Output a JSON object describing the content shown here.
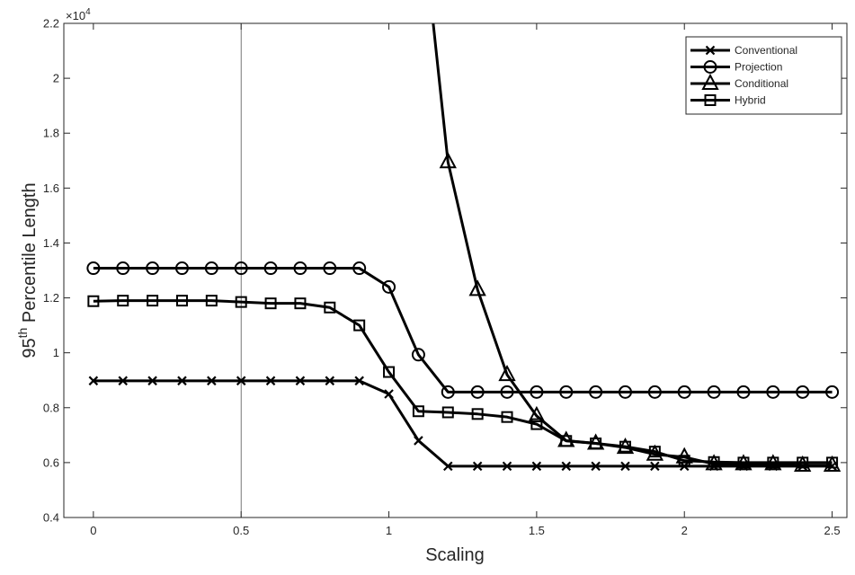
{
  "chart_data": {
    "type": "line",
    "title": "",
    "xlabel": "Scaling",
    "ylabel": "95",
    "ylabel_superscript": "th",
    "ylabel_suffix": " Percentile Length",
    "y_exponent_label": "×10",
    "y_exponent_power": "4",
    "xlim": [
      -0.1,
      2.55
    ],
    "ylim": [
      4000,
      22000
    ],
    "x_ticks": [
      0,
      0.5,
      1,
      1.5,
      2,
      2.5
    ],
    "x_tick_labels": [
      "0",
      "0.5",
      "1",
      "1.5",
      "2",
      "2.5"
    ],
    "y_ticks": [
      4000,
      6000,
      8000,
      10000,
      12000,
      14000,
      16000,
      18000,
      20000,
      22000
    ],
    "y_tick_labels": [
      "0.4",
      "0.6",
      "0.8",
      "1",
      "1.2",
      "1.4",
      "1.6",
      "1.8",
      "2",
      "2.2"
    ],
    "grid": false,
    "reference_vline": 0.5,
    "legend_position": "top-right",
    "x": [
      0,
      0.1,
      0.2,
      0.3,
      0.4,
      0.5,
      0.6,
      0.7,
      0.8,
      0.9,
      1.0,
      1.1,
      1.2,
      1.3,
      1.4,
      1.5,
      1.6,
      1.7,
      1.8,
      1.9,
      2.0,
      2.1,
      2.2,
      2.3,
      2.4,
      2.5
    ],
    "series": [
      {
        "name": "Conventional",
        "marker": "x",
        "values": [
          8980,
          8980,
          8980,
          8980,
          8980,
          8980,
          8980,
          8980,
          8980,
          8980,
          8500,
          6800,
          5870,
          5870,
          5870,
          5870,
          5870,
          5870,
          5870,
          5870,
          5870,
          5870,
          5870,
          5870,
          5870,
          5870
        ]
      },
      {
        "name": "Projection",
        "marker": "circle",
        "values": [
          13080,
          13080,
          13080,
          13080,
          13080,
          13080,
          13080,
          13080,
          13080,
          13080,
          12400,
          9930,
          8570,
          8570,
          8570,
          8570,
          8570,
          8570,
          8570,
          8570,
          8570,
          8570,
          8570,
          8570,
          8570,
          8570
        ]
      },
      {
        "name": "Conditional",
        "marker": "triangle",
        "x": [
          1.15,
          1.2,
          1.3,
          1.4,
          1.5,
          1.6,
          1.7,
          1.8,
          1.9,
          2.0,
          2.1,
          2.2,
          2.3,
          2.4,
          2.5
        ],
        "values": [
          22000,
          16950,
          12300,
          9200,
          7700,
          6800,
          6700,
          6550,
          6300,
          6200,
          5950,
          5950,
          5950,
          5900,
          5900
        ]
      },
      {
        "name": "Hybrid",
        "marker": "square",
        "values": [
          11880,
          11900,
          11900,
          11900,
          11900,
          11850,
          11800,
          11800,
          11650,
          11000,
          9300,
          7870,
          7830,
          7770,
          7660,
          7400,
          6790,
          6700,
          6580,
          6400,
          6070,
          6020,
          6000,
          6000,
          6000,
          6000
        ]
      }
    ]
  }
}
